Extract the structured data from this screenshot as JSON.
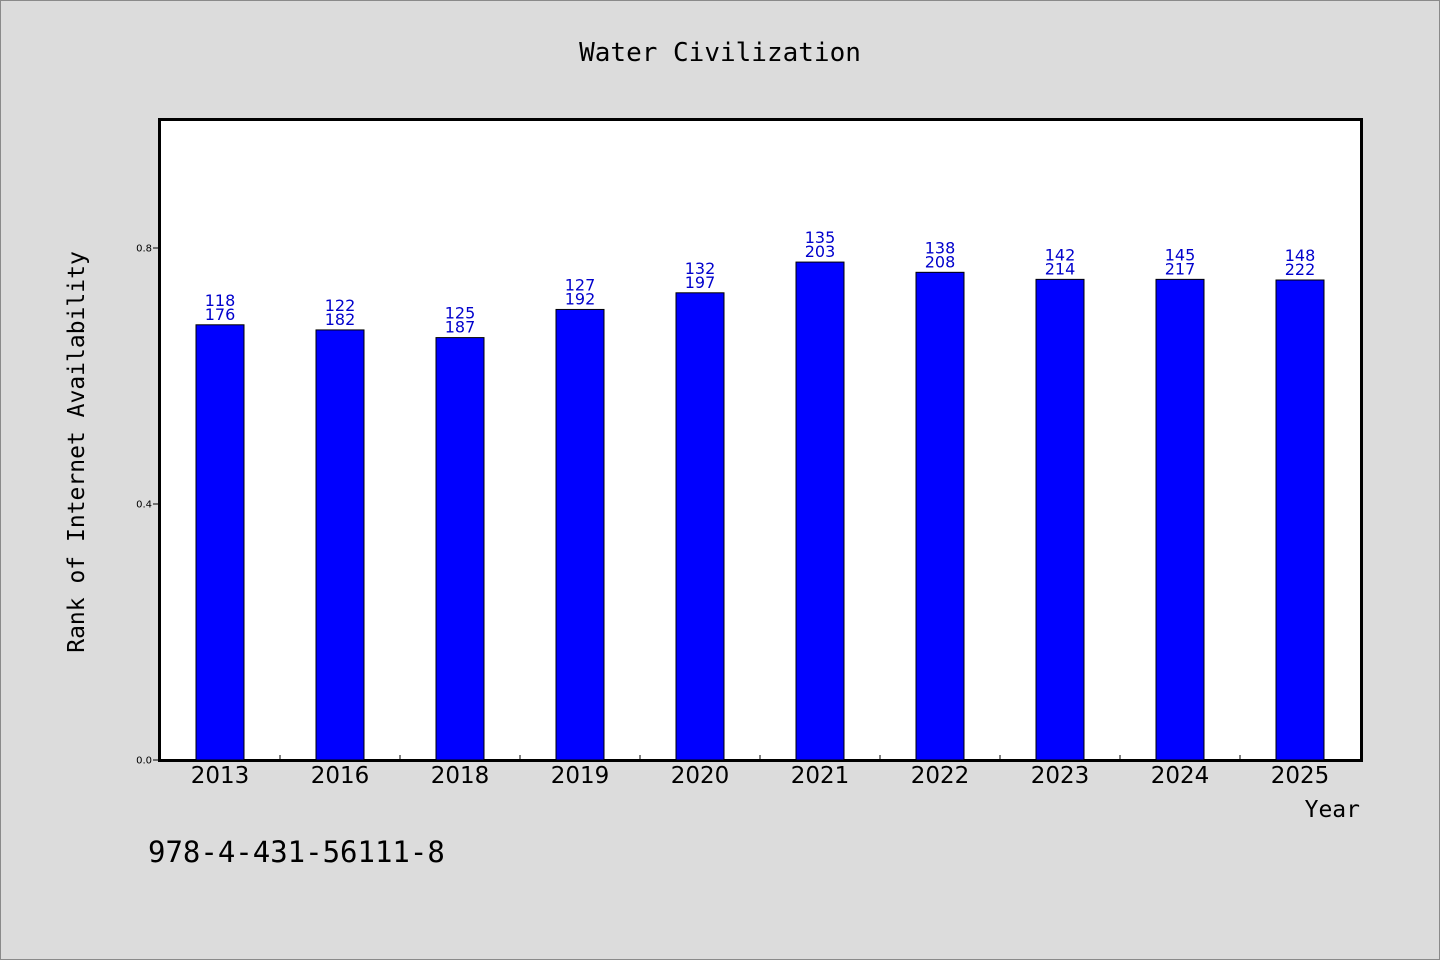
{
  "chart_data": {
    "type": "bar",
    "title": "Water Civilization",
    "xlabel": "Year",
    "ylabel": "Rank of Internet Availability",
    "categories": [
      "2013",
      "2016",
      "2018",
      "2019",
      "2020",
      "2021",
      "2022",
      "2023",
      "2024",
      "2025"
    ],
    "values": [
      0.68,
      0.672,
      0.66,
      0.704,
      0.73,
      0.778,
      0.762,
      0.751,
      0.751,
      0.75
    ],
    "bar_labels_upper": [
      "118",
      "122",
      "125",
      "127",
      "132",
      "135",
      "138",
      "142",
      "145",
      "148"
    ],
    "bar_labels_lower": [
      "176",
      "182",
      "187",
      "192",
      "197",
      "203",
      "208",
      "214",
      "217",
      "222"
    ],
    "yticks": [
      {
        "value": 0.0,
        "label": "0.0"
      },
      {
        "value": 0.4,
        "label": "0.4"
      },
      {
        "value": 0.8,
        "label": "0.8"
      }
    ],
    "ylim": [
      0,
      1.0
    ],
    "grid": false,
    "colors": {
      "bar_fill": "#0000ff",
      "bar_stroke": "#000000",
      "bar_label": "#0000cc",
      "background": "#dcdcdc",
      "plot_background": "#ffffff"
    }
  },
  "footer": {
    "isbn": "978-4-431-56111-8"
  }
}
